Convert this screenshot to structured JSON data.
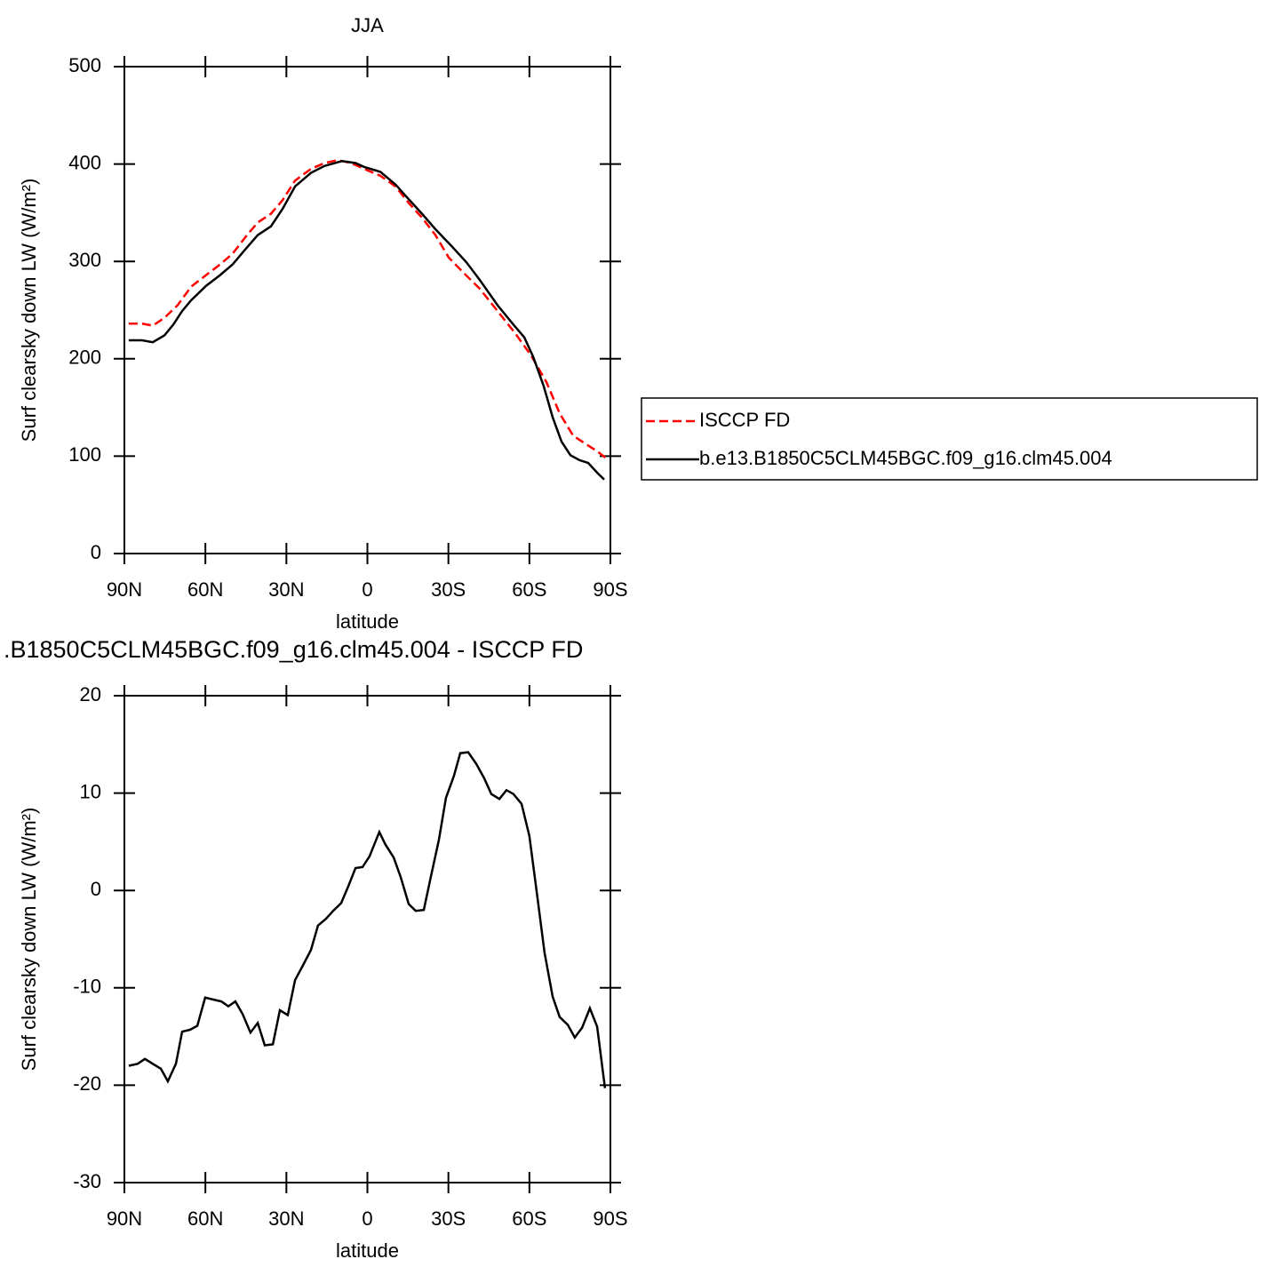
{
  "chart_data": [
    {
      "type": "line",
      "title": "JJA",
      "xlabel": "latitude",
      "ylabel": "Surf clearsky down LW (W/m²)",
      "xlim": [
        90,
        -90
      ],
      "xticks": [
        {
          "value": 90,
          "label": "90N"
        },
        {
          "value": 60,
          "label": "60N"
        },
        {
          "value": 30,
          "label": "30N"
        },
        0,
        {
          "value": -30,
          "label": "30S"
        },
        {
          "value": -60,
          "label": "60S"
        },
        {
          "value": -90,
          "label": "90S"
        }
      ],
      "ylim": [
        0,
        500
      ],
      "yticks": [
        0,
        100,
        200,
        300,
        400,
        500
      ],
      "legend": "right",
      "series": [
        {
          "name": "ISCCP FD",
          "color": "#ff0000",
          "dash": true,
          "x": [
            88.4,
            83.4,
            79.5,
            75.2,
            70.3,
            65.3,
            59.7,
            54.5,
            49.9,
            44.6,
            40.6,
            35.7,
            31.4,
            26.8,
            20.9,
            15.9,
            11.0,
            6.1,
            1.2,
            -4.8,
            -10.4,
            -15.3,
            -20.2,
            -25.2,
            -30.1,
            -35.0,
            -41.6,
            -48.2,
            -54.8,
            -60.7,
            -66.3,
            -71.2,
            -76.2,
            -81.1,
            -85.1,
            -89.3
          ],
          "values": [
            236,
            236,
            234,
            242,
            255,
            274,
            286,
            297,
            308,
            327,
            340,
            349,
            363,
            383,
            395,
            401,
            404,
            401,
            395,
            388,
            377,
            360,
            345,
            327,
            304,
            290,
            272,
            249,
            226,
            203,
            176,
            144,
            121,
            112,
            105,
            96
          ]
        },
        {
          "name": "b.e13.B1850C5CLM45BGC.f09_g16.clm45.004",
          "color": "#000000",
          "dash": false,
          "x": [
            88.4,
            83.4,
            79.5,
            75.2,
            71.9,
            68.6,
            65.3,
            59.7,
            54.5,
            49.9,
            45.6,
            40.6,
            35.7,
            31.4,
            26.8,
            20.9,
            15.9,
            9.4,
            4.4,
            1.2,
            -4.8,
            -10.4,
            -14.6,
            -20.2,
            -25.2,
            -31.1,
            -36.7,
            -41.6,
            -48.2,
            -54.1,
            -58.1,
            -61.4,
            -65.3,
            -68.6,
            -71.9,
            -75.2,
            -78.5,
            -81.8,
            -85.1,
            -87.7
          ],
          "values": [
            219,
            219,
            217,
            224,
            235,
            249,
            260,
            275,
            286,
            297,
            311,
            327,
            336,
            354,
            377,
            391,
            398,
            403,
            401,
            397,
            392,
            379,
            366,
            349,
            333,
            316,
            299,
            281,
            255,
            235,
            222,
            202,
            172,
            140,
            115,
            101,
            96,
            93,
            83,
            76
          ]
        }
      ]
    },
    {
      "type": "line",
      "title": ".B1850C5CLM45BGC.f09_g16.clm45.004 - ISCCP FD",
      "xlabel": "latitude",
      "ylabel": "Surf clearsky down LW (W/m²)",
      "xlim": [
        90,
        -90
      ],
      "xticks": [
        {
          "value": 90,
          "label": "90N"
        },
        {
          "value": 60,
          "label": "60N"
        },
        {
          "value": 30,
          "label": "30N"
        },
        0,
        {
          "value": -30,
          "label": "30S"
        },
        {
          "value": -60,
          "label": "60S"
        },
        {
          "value": -90,
          "label": "90S"
        }
      ],
      "ylim": [
        -30,
        20
      ],
      "yticks": [
        -30,
        -20,
        -10,
        0,
        10,
        20
      ],
      "series": [
        {
          "color": "#000000",
          "dash": false,
          "x": [
            88.4,
            85.1,
            82.4,
            79.5,
            76.5,
            73.9,
            70.9,
            68.6,
            65.6,
            63.0,
            60.1,
            57.1,
            54.1,
            51.5,
            48.9,
            46.2,
            43.3,
            40.6,
            38.0,
            35.0,
            32.4,
            29.5,
            26.8,
            23.9,
            20.9,
            18.3,
            15.3,
            12.7,
            9.7,
            7.1,
            4.4,
            1.8,
            -0.8,
            -4.4,
            -6.7,
            -9.7,
            -12.3,
            -15.3,
            -17.9,
            -20.9,
            -23.5,
            -26.5,
            -29.1,
            -32.1,
            -34.4,
            -37.3,
            -40.3,
            -43.3,
            -45.9,
            -48.9,
            -51.5,
            -54.1,
            -57.1,
            -60.0,
            -62.7,
            -65.6,
            -68.6,
            -71.2,
            -74.2,
            -76.8,
            -79.5,
            -82.4,
            -85.1,
            -88.0
          ],
          "values": [
            -18.0,
            -17.8,
            -17.3,
            -17.8,
            -18.3,
            -19.6,
            -17.8,
            -14.5,
            -14.3,
            -13.9,
            -11.0,
            -11.2,
            -11.4,
            -11.9,
            -11.4,
            -12.7,
            -14.6,
            -13.6,
            -15.9,
            -15.8,
            -12.3,
            -12.8,
            -9.2,
            -7.7,
            -6.1,
            -3.6,
            -2.9,
            -2.1,
            -1.3,
            0.4,
            2.3,
            2.4,
            3.5,
            6.0,
            4.7,
            3.4,
            1.4,
            -1.4,
            -2.1,
            -2.0,
            1.4,
            5.2,
            9.5,
            11.8,
            14.1,
            14.2,
            13.0,
            11.5,
            9.9,
            9.4,
            10.3,
            9.9,
            8.9,
            5.6,
            -0.1,
            -6.4,
            -10.9,
            -13.0,
            -13.8,
            -15.1,
            -14.1,
            -12.1,
            -14.0,
            -20.3
          ]
        }
      ]
    }
  ]
}
